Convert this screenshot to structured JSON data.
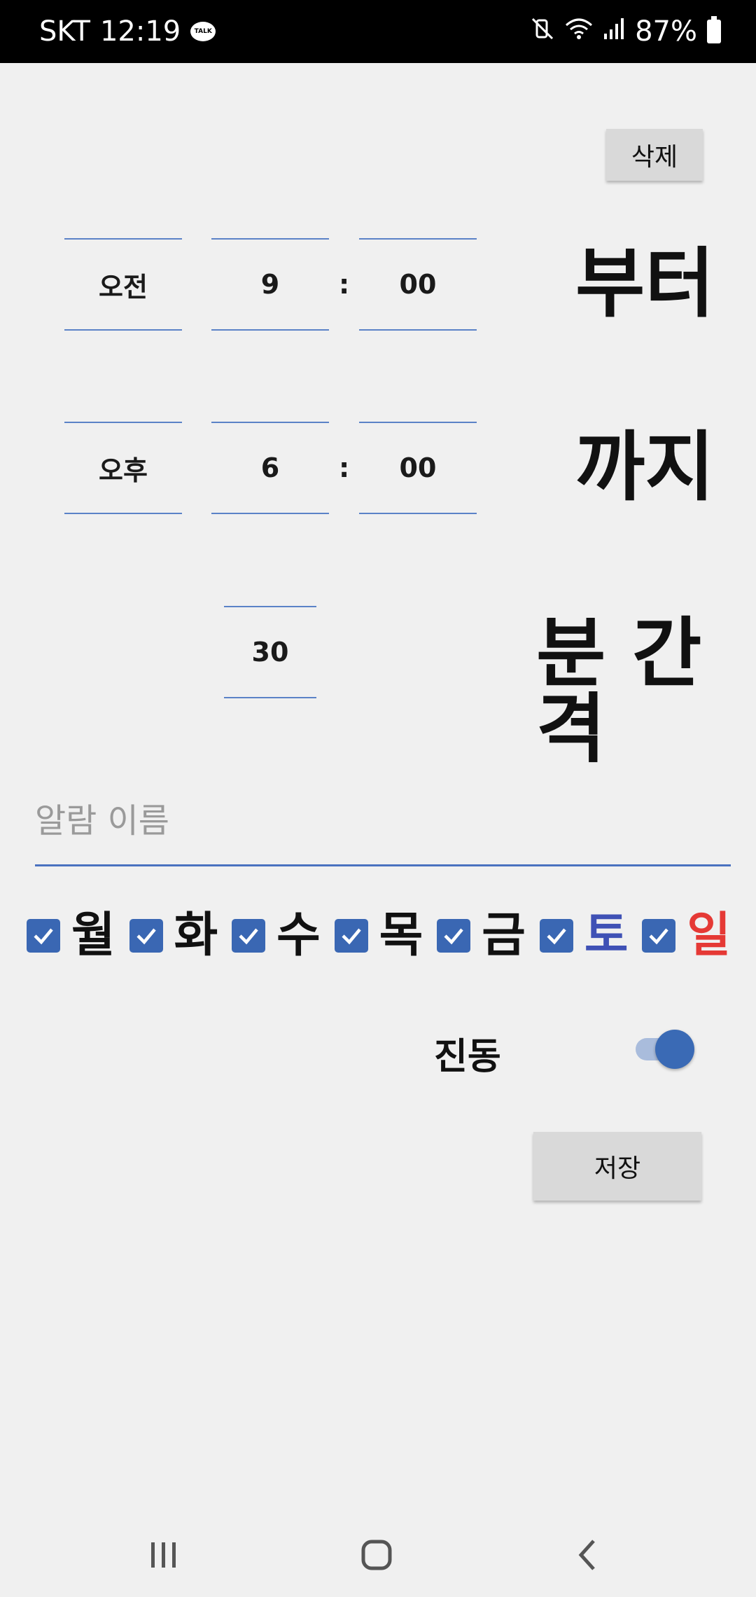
{
  "status_bar": {
    "carrier": "SKT",
    "time": "12:19",
    "talk_badge": "TALK",
    "battery": "87%"
  },
  "buttons": {
    "delete_label": "삭제",
    "save_label": "저장"
  },
  "start_time": {
    "ampm": "오전",
    "hour": "9",
    "separator": ":",
    "minute": "00",
    "label": "부터"
  },
  "end_time": {
    "ampm": "오후",
    "hour": "6",
    "separator": ":",
    "minute": "00",
    "label": "까지"
  },
  "interval": {
    "minutes": "30",
    "label": "분 간격"
  },
  "alarm_name": {
    "value": "",
    "placeholder": "알람 이름"
  },
  "days": [
    {
      "label": "월",
      "checked": true,
      "color": "#111111"
    },
    {
      "label": "화",
      "checked": true,
      "color": "#111111"
    },
    {
      "label": "수",
      "checked": true,
      "color": "#111111"
    },
    {
      "label": "목",
      "checked": true,
      "color": "#111111"
    },
    {
      "label": "금",
      "checked": true,
      "color": "#111111"
    },
    {
      "label": "토",
      "checked": true,
      "color": "#3f51b5"
    },
    {
      "label": "일",
      "checked": true,
      "color": "#e53935"
    }
  ],
  "vibration": {
    "label": "진동",
    "enabled": true
  },
  "colors": {
    "accent": "#3a67b3",
    "field_line": "#5b82c7",
    "button_bg": "#d9d9d9",
    "background": "#f0f0f0"
  }
}
